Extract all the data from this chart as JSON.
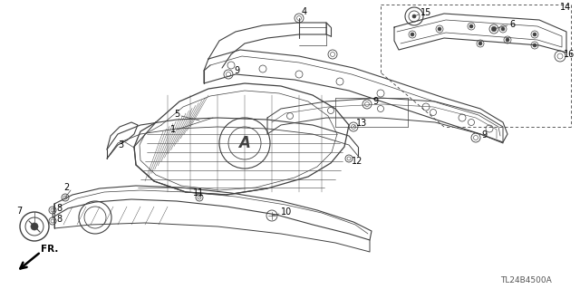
{
  "bg_color": "#ffffff",
  "line_color": "#404040",
  "code_text": "TL24B4500A",
  "lw": 0.7
}
